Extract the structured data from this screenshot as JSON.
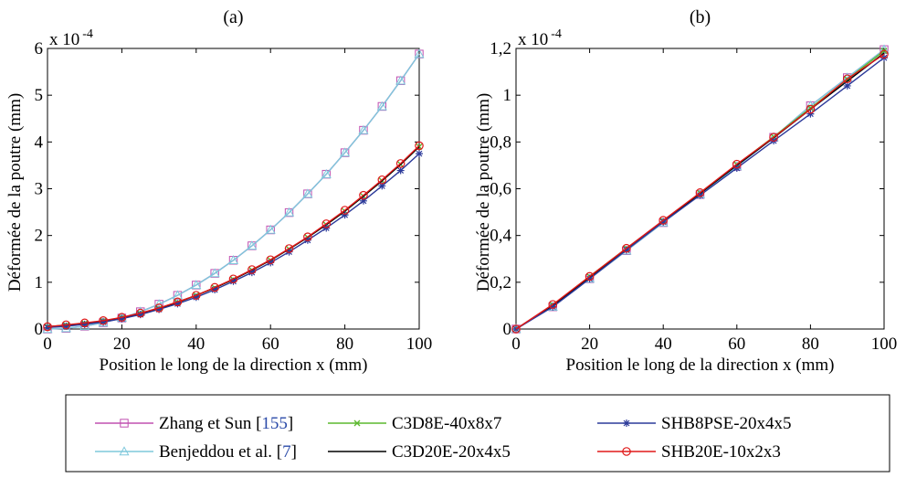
{
  "colors": {
    "zhang": "#c050b0",
    "benjeddou": "#7ec8dc",
    "c3d8e": "#5cb82e",
    "c3d20e": "#000000",
    "shb8pse": "#2c3a9a",
    "shb20e": "#e01818",
    "ref_link": "#2a4aa8"
  },
  "chart_data": [
    {
      "type": "line",
      "panel_label": "(a)",
      "xlabel": "Position le long de la direction x (mm)",
      "ylabel": "Déformée de la poutre (mm)",
      "y_exponent_label": "x 10",
      "y_exponent_power": "-4",
      "xlim": [
        0,
        100
      ],
      "ylim": [
        0,
        6
      ],
      "xticks": [
        0,
        20,
        40,
        60,
        80,
        100
      ],
      "yticks": [
        0,
        1,
        2,
        3,
        4,
        5,
        6
      ],
      "ytick_labels": [
        "0",
        "1",
        "2",
        "3",
        "4",
        "5",
        "6"
      ],
      "grid": false,
      "series": [
        {
          "key": "zhang",
          "marker": "square",
          "x": [
            0,
            5,
            10,
            15,
            20,
            25,
            30,
            35,
            40,
            45,
            50,
            55,
            60,
            65,
            70,
            75,
            80,
            85,
            90,
            95,
            100
          ],
          "values": [
            0,
            0.015,
            0.06,
            0.135,
            0.235,
            0.37,
            0.53,
            0.72,
            0.94,
            1.19,
            1.47,
            1.78,
            2.12,
            2.49,
            2.89,
            3.31,
            3.77,
            4.25,
            4.76,
            5.31,
            5.88
          ]
        },
        {
          "key": "benjeddou",
          "marker": "triangle",
          "x": [
            0,
            5,
            10,
            15,
            20,
            25,
            30,
            35,
            40,
            45,
            50,
            55,
            60,
            65,
            70,
            75,
            80,
            85,
            90,
            95,
            100
          ],
          "values": [
            0,
            0.015,
            0.06,
            0.135,
            0.235,
            0.37,
            0.53,
            0.72,
            0.94,
            1.19,
            1.47,
            1.78,
            2.12,
            2.49,
            2.89,
            3.31,
            3.77,
            4.25,
            4.76,
            5.31,
            5.88
          ]
        },
        {
          "key": "c3d8e",
          "marker": "x",
          "x": [
            0,
            5,
            10,
            15,
            20,
            25,
            30,
            35,
            40,
            45,
            50,
            55,
            60,
            65,
            70,
            75,
            80,
            85,
            90,
            95,
            100
          ],
          "values": [
            0.05,
            0.08,
            0.12,
            0.17,
            0.24,
            0.33,
            0.44,
            0.57,
            0.72,
            0.88,
            1.06,
            1.26,
            1.47,
            1.71,
            1.96,
            2.23,
            2.52,
            2.84,
            3.17,
            3.52,
            3.9
          ]
        },
        {
          "key": "c3d20e",
          "marker": "none",
          "x": [
            0,
            5,
            10,
            15,
            20,
            25,
            30,
            35,
            40,
            45,
            50,
            55,
            60,
            65,
            70,
            75,
            80,
            85,
            90,
            95,
            100
          ],
          "values": [
            0.05,
            0.08,
            0.12,
            0.17,
            0.24,
            0.33,
            0.44,
            0.57,
            0.72,
            0.88,
            1.06,
            1.26,
            1.47,
            1.71,
            1.96,
            2.23,
            2.52,
            2.84,
            3.17,
            3.52,
            3.9
          ]
        },
        {
          "key": "shb8pse",
          "marker": "asterisk",
          "x": [
            0,
            5,
            10,
            15,
            20,
            25,
            30,
            35,
            40,
            45,
            50,
            55,
            60,
            65,
            70,
            75,
            80,
            85,
            90,
            95,
            100
          ],
          "values": [
            0.03,
            0.06,
            0.1,
            0.15,
            0.22,
            0.31,
            0.42,
            0.54,
            0.68,
            0.84,
            1.02,
            1.21,
            1.42,
            1.65,
            1.9,
            2.16,
            2.44,
            2.74,
            3.06,
            3.39,
            3.75
          ]
        },
        {
          "key": "shb20e",
          "marker": "circle",
          "x": [
            0,
            5,
            10,
            15,
            20,
            25,
            30,
            35,
            40,
            45,
            50,
            55,
            60,
            65,
            70,
            75,
            80,
            85,
            90,
            95,
            100
          ],
          "values": [
            0.05,
            0.09,
            0.13,
            0.18,
            0.25,
            0.34,
            0.45,
            0.58,
            0.72,
            0.89,
            1.07,
            1.27,
            1.48,
            1.72,
            1.97,
            2.25,
            2.54,
            2.86,
            3.19,
            3.54,
            3.92
          ]
        }
      ]
    },
    {
      "type": "line",
      "panel_label": "(b)",
      "xlabel": "Position le long de la direction x (mm)",
      "ylabel": "Déformée de la poutre (mm)",
      "y_exponent_label": "x 10",
      "y_exponent_power": "-4",
      "xlim": [
        0,
        100
      ],
      "ylim": [
        0,
        1.2
      ],
      "xticks": [
        0,
        20,
        40,
        60,
        80,
        100
      ],
      "yticks": [
        0,
        0.2,
        0.4,
        0.6,
        0.8,
        1.0,
        1.2
      ],
      "ytick_labels": [
        "0",
        "0,2",
        "0,4",
        "0,6",
        "0,8",
        "1",
        "1,2"
      ],
      "grid": false,
      "series": [
        {
          "key": "zhang",
          "marker": "square",
          "x": [
            0,
            10,
            20,
            30,
            40,
            50,
            60,
            70,
            80,
            90,
            100
          ],
          "values": [
            0,
            0.095,
            0.215,
            0.335,
            0.455,
            0.575,
            0.695,
            0.82,
            0.955,
            1.075,
            1.195
          ]
        },
        {
          "key": "benjeddou",
          "marker": "triangle",
          "x": [
            0,
            10,
            20,
            30,
            40,
            50,
            60,
            70,
            80,
            90,
            100
          ],
          "values": [
            0,
            0.095,
            0.215,
            0.335,
            0.455,
            0.575,
            0.695,
            0.82,
            0.955,
            1.075,
            1.195
          ]
        },
        {
          "key": "c3d8e",
          "marker": "x",
          "x": [
            0,
            10,
            20,
            30,
            40,
            50,
            60,
            70,
            80,
            90,
            100
          ],
          "values": [
            0,
            0.103,
            0.225,
            0.345,
            0.462,
            0.582,
            0.703,
            0.822,
            0.945,
            1.068,
            1.19
          ]
        },
        {
          "key": "c3d20e",
          "marker": "none",
          "x": [
            0,
            10,
            20,
            30,
            40,
            50,
            60,
            70,
            80,
            90,
            100
          ],
          "values": [
            0,
            0.1,
            0.222,
            0.342,
            0.46,
            0.58,
            0.7,
            0.818,
            0.94,
            1.06,
            1.18
          ]
        },
        {
          "key": "shb8pse",
          "marker": "asterisk",
          "x": [
            0,
            10,
            20,
            30,
            40,
            50,
            60,
            70,
            80,
            90,
            100
          ],
          "values": [
            0,
            0.095,
            0.215,
            0.338,
            0.458,
            0.572,
            0.688,
            0.805,
            0.92,
            1.04,
            1.16
          ]
        },
        {
          "key": "shb20e",
          "marker": "circle",
          "x": [
            0,
            10,
            20,
            30,
            40,
            50,
            60,
            70,
            80,
            90,
            100
          ],
          "values": [
            0,
            0.105,
            0.225,
            0.345,
            0.465,
            0.583,
            0.705,
            0.82,
            0.94,
            1.07,
            1.175
          ]
        }
      ]
    }
  ],
  "legend": {
    "entries": [
      {
        "key": "zhang",
        "marker": "square",
        "label": "Zhang et Sun [",
        "ref": "155",
        "suffix": "]"
      },
      {
        "key": "benjeddou",
        "marker": "triangle",
        "label": "Benjeddou et al. [",
        "ref": "7",
        "suffix": "]"
      },
      {
        "key": "c3d8e",
        "marker": "x",
        "label": "C3D8E-40x8x7",
        "ref": "",
        "suffix": ""
      },
      {
        "key": "c3d20e",
        "marker": "none",
        "label": "C3D20E-20x4x5",
        "ref": "",
        "suffix": ""
      },
      {
        "key": "shb8pse",
        "marker": "asterisk",
        "label": "SHB8PSE-20x4x5",
        "ref": "",
        "suffix": ""
      },
      {
        "key": "shb20e",
        "marker": "circle",
        "label": "SHB20E-10x2x3",
        "ref": "",
        "suffix": ""
      }
    ]
  }
}
